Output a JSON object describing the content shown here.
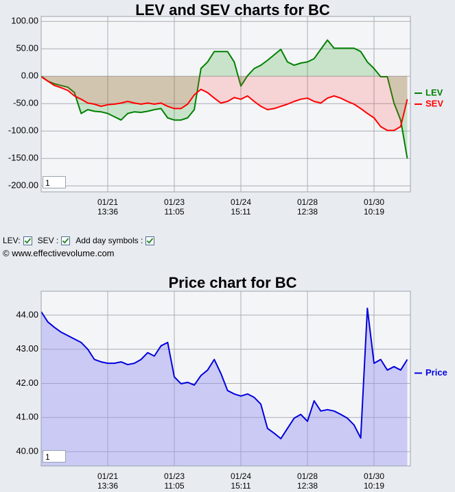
{
  "chart_data": [
    {
      "type": "line",
      "area": true,
      "title": "LEV and SEV charts for BC",
      "categories": [
        null,
        null,
        null,
        null,
        null,
        null,
        null,
        null,
        null,
        null,
        "01/21\n13:36",
        null,
        null,
        null,
        null,
        null,
        null,
        null,
        null,
        null,
        "01/23\n11:05",
        null,
        null,
        null,
        null,
        null,
        null,
        null,
        null,
        null,
        "01/24\n15:11",
        null,
        null,
        null,
        null,
        null,
        null,
        null,
        null,
        null,
        "01/28\n12:38",
        null,
        null,
        null,
        null,
        null,
        null,
        null,
        null,
        null,
        "01/30\n10:19",
        null,
        null,
        null,
        null,
        null
      ],
      "series": [
        {
          "name": "LEV",
          "color": "#008000",
          "fill": "rgba(0,150,0,0.18)",
          "values": [
            0,
            -9,
            -14,
            -17,
            -20,
            -30,
            -68,
            -61,
            -64,
            -65,
            -68,
            -74,
            -80,
            -68,
            -65,
            -66,
            -64,
            -61,
            -59,
            -76,
            -80,
            -80,
            -76,
            -61,
            14,
            26,
            45,
            45,
            45,
            26,
            -18,
            1,
            14,
            20,
            29,
            39,
            49,
            26,
            20,
            24,
            26,
            32,
            49,
            66,
            51,
            51,
            51,
            51,
            45,
            26,
            14,
            -1,
            -1,
            -49,
            -80,
            -150
          ]
        },
        {
          "name": "SEV",
          "color": "#ff0000",
          "fill": "rgba(255,60,60,0.18)",
          "values": [
            -1,
            -9,
            -17,
            -21,
            -26,
            -36,
            -42,
            -49,
            -51,
            -55,
            -52,
            -51,
            -49,
            -46,
            -49,
            -51,
            -49,
            -51,
            -49,
            -55,
            -59,
            -59,
            -51,
            -34,
            -24,
            -30,
            -40,
            -49,
            -46,
            -39,
            -42,
            -36,
            -46,
            -55,
            -61,
            -59,
            -55,
            -51,
            -46,
            -42,
            -40,
            -46,
            -49,
            -40,
            -36,
            -40,
            -46,
            -51,
            -59,
            -68,
            -76,
            -92,
            -99,
            -99,
            -92,
            -42
          ]
        }
      ],
      "ylim": [
        -211,
        109
      ],
      "yticks": [
        {
          "value": 100,
          "label": "100.00"
        },
        {
          "value": 50,
          "label": "50.00"
        },
        {
          "value": 0,
          "label": "0.00"
        },
        {
          "value": -50,
          "label": "-50.00"
        },
        {
          "value": -100,
          "label": "-100.00"
        },
        {
          "value": -150,
          "label": "-150.00"
        },
        {
          "value": -200,
          "label": "-200.00"
        }
      ],
      "grid": true,
      "legend": "right",
      "input": "1"
    },
    {
      "type": "line",
      "area": true,
      "title": "Price chart for BC",
      "categories": [
        null,
        null,
        null,
        null,
        null,
        null,
        null,
        null,
        null,
        null,
        "01/21\n13:36",
        null,
        null,
        null,
        null,
        null,
        null,
        null,
        null,
        null,
        "01/23\n11:05",
        null,
        null,
        null,
        null,
        null,
        null,
        null,
        null,
        null,
        "01/24\n15:11",
        null,
        null,
        null,
        null,
        null,
        null,
        null,
        null,
        null,
        "01/28\n12:38",
        null,
        null,
        null,
        null,
        null,
        null,
        null,
        null,
        null,
        "01/30\n10:19",
        null,
        null,
        null,
        null,
        null
      ],
      "series": [
        {
          "name": "Price",
          "color": "#0000dd",
          "fill": "rgba(150,150,240,0.45)",
          "values": [
            44.1,
            43.8,
            43.64,
            43.5,
            43.4,
            43.3,
            43.2,
            43.0,
            42.7,
            42.63,
            42.59,
            42.59,
            42.63,
            42.55,
            42.59,
            42.7,
            42.9,
            42.8,
            43.1,
            43.2,
            42.19,
            41.99,
            42.03,
            41.95,
            42.23,
            42.39,
            42.7,
            42.29,
            41.79,
            41.69,
            41.63,
            41.69,
            41.59,
            41.39,
            40.68,
            40.54,
            40.38,
            40.68,
            40.98,
            41.09,
            40.89,
            41.49,
            41.19,
            41.23,
            41.19,
            41.09,
            40.98,
            40.78,
            40.4,
            44.2,
            42.59,
            42.7,
            42.39,
            42.49,
            42.39,
            42.7
          ]
        }
      ],
      "ylim": [
        39.58,
        44.7
      ],
      "yticks": [
        {
          "value": 44,
          "label": "44.00"
        },
        {
          "value": 43,
          "label": "43.00"
        },
        {
          "value": 42,
          "label": "42.00"
        },
        {
          "value": 41,
          "label": "41.00"
        },
        {
          "value": 40,
          "label": "40.00"
        }
      ],
      "grid": true,
      "legend": "right",
      "input": "1"
    }
  ],
  "controls": [
    {
      "label": "LEV:",
      "checked": true
    },
    {
      "label": "SEV :",
      "checked": true
    },
    {
      "label": "Add day symbols :",
      "checked": true
    }
  ],
  "footer": "© www.effectivevolume.com"
}
